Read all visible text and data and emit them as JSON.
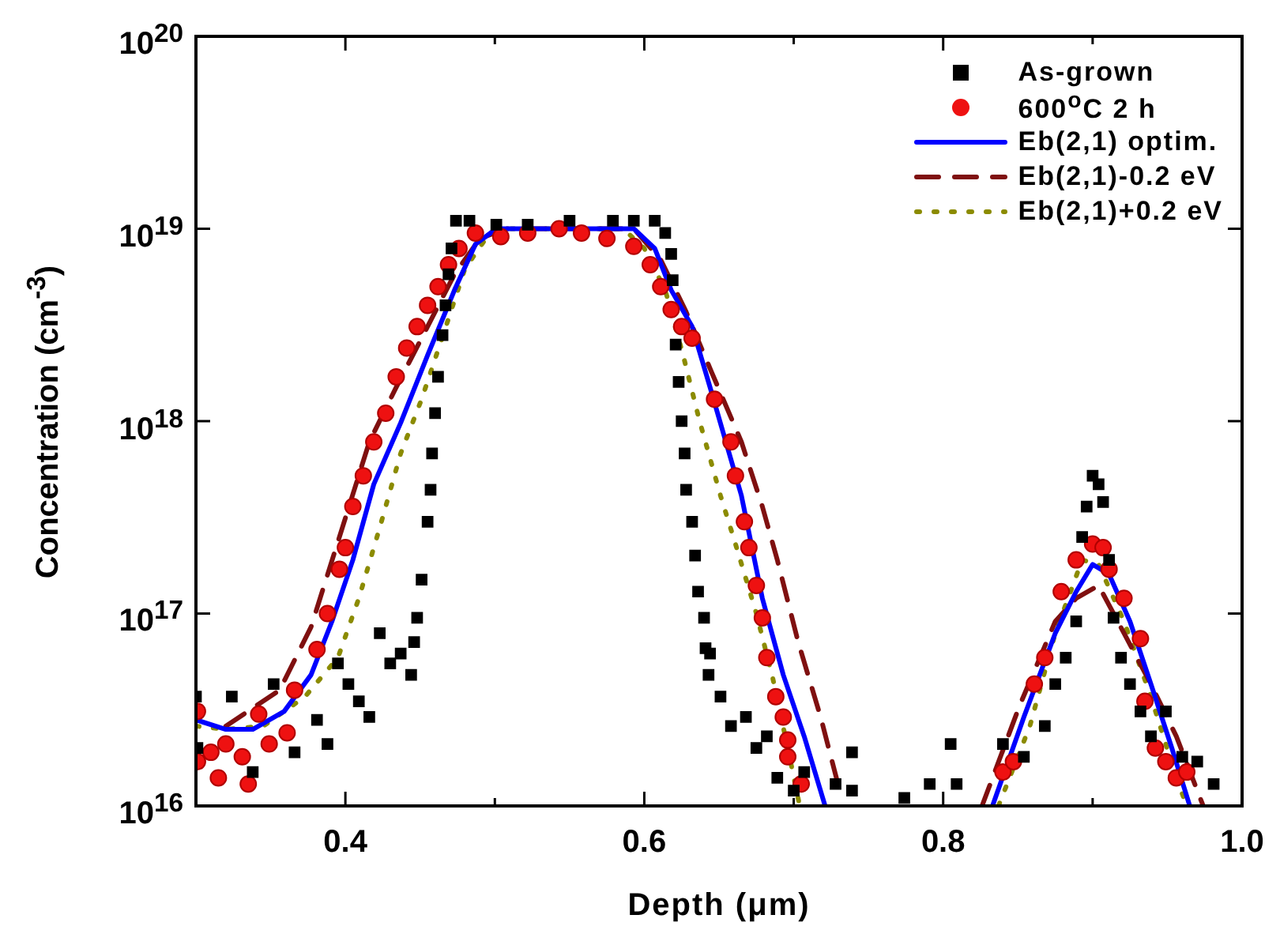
{
  "chart_data": {
    "type": "scatter",
    "xlabel": "Depth (μm)",
    "ylabel": "Concentration (cm$^{-3}$)",
    "log": "y",
    "grid": false,
    "legend": "top right",
    "xlim": [
      0.3,
      1.0
    ],
    "xticks": [
      {
        "value": 0.3,
        "label": null
      },
      0.4,
      {
        "value": 0.5,
        "label": null
      },
      0.6,
      {
        "value": 0.7,
        "label": null
      },
      0.8,
      {
        "value": 0.9,
        "label": null
      },
      {
        "value": 1.0,
        "label": "1.0"
      }
    ],
    "ylim": [
      1e+16,
      1e+20
    ],
    "yticks": [
      {
        "value": 1e+16,
        "label": "10$^{16}$"
      },
      {
        "value": 1e+17,
        "label": "10$^{17}$"
      },
      {
        "value": 1e+18,
        "label": "10$^{18}$"
      },
      {
        "value": 1e+19,
        "label": "10$^{19}$"
      },
      {
        "value": 1e+20,
        "label": "10$^{20}$"
      }
    ],
    "series": [
      {
        "name": "As-grown",
        "marker": "square",
        "color": "#000000",
        "x": [
          0.3,
          0.301,
          0.324,
          0.338,
          0.352,
          0.366,
          0.381,
          0.388,
          0.395,
          0.402,
          0.409,
          0.416,
          0.423,
          0.43,
          0.437,
          0.444,
          0.446,
          0.448,
          0.451,
          0.455,
          0.457,
          0.458,
          0.46,
          0.462,
          0.465,
          0.467,
          0.469,
          0.471,
          0.474,
          0.483,
          0.501,
          0.522,
          0.55,
          0.579,
          0.593,
          0.607,
          0.614,
          0.618,
          0.619,
          0.621,
          0.623,
          0.625,
          0.627,
          0.628,
          0.632,
          0.634,
          0.636,
          0.64,
          0.641,
          0.643,
          0.644,
          0.651,
          0.658,
          0.668,
          0.675,
          0.682,
          0.689,
          0.7,
          0.707,
          0.728,
          0.739,
          0.739,
          0.774,
          0.791,
          0.805,
          0.809,
          0.84,
          0.854,
          0.868,
          0.875,
          0.882,
          0.889,
          0.893,
          0.896,
          0.9,
          0.904,
          0.907,
          0.911,
          0.914,
          0.919,
          0.925,
          0.932,
          0.939,
          0.949,
          0.96,
          0.97,
          0.981
        ],
        "values": [
          3.7e+16,
          2e+16,
          3.7e+16,
          1.5e+16,
          4.3e+16,
          1.9e+16,
          2.8e+16,
          2.1e+16,
          5.5e+16,
          4.3e+16,
          3.5e+16,
          2.9e+16,
          7.9e+16,
          5.5e+16,
          6.2e+16,
          4.8e+16,
          7.1e+16,
          9.5e+16,
          1.5e+17,
          3e+17,
          4.4e+17,
          6.8e+17,
          1.1e+18,
          1.7e+18,
          2.8e+18,
          4e+18,
          5.8e+18,
          7.9e+18,
          1.1e+19,
          1.1e+19,
          1.05e+19,
          1.05e+19,
          1.1e+19,
          1.1e+19,
          1.1e+19,
          1.1e+19,
          9.5e+18,
          7.4e+18,
          5.4e+18,
          2.5e+18,
          1.6e+18,
          1e+18,
          6.8e+17,
          4.4e+17,
          3e+17,
          2e+17,
          1.3e+17,
          9.5e+16,
          6.6e+16,
          4.8e+16,
          6.2e+16,
          3.7e+16,
          2.6e+16,
          2.9e+16,
          2e+16,
          2.3e+16,
          1.4e+16,
          1.2e+16,
          1.5e+16,
          1.3e+16,
          1.9e+16,
          1.2e+16,
          1.1e+16,
          1.3e+16,
          2.1e+16,
          1.3e+16,
          2.1e+16,
          1.8e+16,
          2.6e+16,
          4.3e+16,
          5.9e+16,
          9.1e+16,
          2.5e+17,
          3.6e+17,
          5.2e+17,
          4.7e+17,
          3.8e+17,
          1.9e+17,
          9.5e+16,
          5.9e+16,
          4.3e+16,
          3.1e+16,
          2.3e+16,
          3.1e+16,
          1.8e+16,
          1.7e+16,
          1.3e+16
        ]
      },
      {
        "name": "600$^{o}$C 2 h",
        "marker": "circle",
        "color": "#ee1111",
        "x": [
          0.301,
          0.301,
          0.31,
          0.315,
          0.32,
          0.331,
          0.335,
          0.342,
          0.349,
          0.361,
          0.366,
          0.381,
          0.388,
          0.396,
          0.4,
          0.405,
          0.412,
          0.419,
          0.427,
          0.434,
          0.441,
          0.448,
          0.455,
          0.462,
          0.469,
          0.476,
          0.487,
          0.504,
          0.522,
          0.543,
          0.558,
          0.575,
          0.593,
          0.604,
          0.611,
          0.618,
          0.625,
          0.632,
          0.647,
          0.658,
          0.661,
          0.667,
          0.67,
          0.675,
          0.679,
          0.682,
          0.688,
          0.693,
          0.696,
          0.696,
          0.705,
          0.84,
          0.847,
          0.861,
          0.868,
          0.879,
          0.889,
          0.9,
          0.907,
          0.911,
          0.921,
          0.932,
          0.935,
          0.942,
          0.949,
          0.956,
          0.963
        ],
        "values": [
          3.1e+16,
          1.7e+16,
          1.9e+16,
          1.4e+16,
          2.1e+16,
          1.8e+16,
          1.3e+16,
          3e+16,
          2.1e+16,
          2.4e+16,
          4e+16,
          6.5e+16,
          1e+17,
          1.7e+17,
          2.2e+17,
          3.6e+17,
          5.2e+17,
          7.8e+17,
          1.1e+18,
          1.7e+18,
          2.4e+18,
          3.1e+18,
          4e+18,
          5e+18,
          6.5e+18,
          7.9e+18,
          9.5e+18,
          9.1e+18,
          9.5e+18,
          1e+19,
          9.5e+18,
          8.9e+18,
          8.1e+18,
          6.5e+18,
          5e+18,
          3.8e+18,
          3.1e+18,
          2.7e+18,
          1.3e+18,
          7.8e+17,
          5.2e+17,
          3e+17,
          2.2e+17,
          1.4e+17,
          9.5e+16,
          5.9e+16,
          3.7e+16,
          2.9e+16,
          2.2e+16,
          1.8e+16,
          1.3e+16,
          1.5e+16,
          1.7e+16,
          4.3e+16,
          5.9e+16,
          1.3e+17,
          1.9e+17,
          2.3e+17,
          2.2e+17,
          1.7e+17,
          1.2e+17,
          7.4e+16,
          3.5e+16,
          2e+16,
          1.7e+16,
          1.4e+16,
          1.5e+16
        ]
      },
      {
        "name": "Eb(2,1) optim.",
        "type": "line",
        "line_style": "solid",
        "color": "#0000ff",
        "x": [
          0.3,
          0.32,
          0.338,
          0.359,
          0.377,
          0.391,
          0.405,
          0.419,
          0.437,
          0.455,
          0.473,
          0.487,
          0.501,
          0.593,
          0.607,
          0.618,
          0.632,
          0.644,
          0.665,
          0.679,
          0.693,
          0.707,
          0.721,
          0.777,
          0.833,
          0.854,
          0.875,
          0.889,
          0.9,
          0.911,
          0.925,
          0.939,
          0.953,
          0.965
        ],
        "values": [
          2.8e+16,
          2.5e+16,
          2.5e+16,
          3.1e+16,
          4.8e+16,
          9.1e+16,
          1.9e+17,
          4.7e+17,
          9.8e+17,
          2.2e+18,
          4.8e+18,
          8.3e+18,
          1e+19,
          1e+19,
          7.9e+18,
          4.8e+18,
          3.1e+18,
          1.5e+18,
          4.1e+17,
          1.2e+17,
          4.8e+16,
          2.3e+16,
          1e+16,
          null,
          1e+16,
          2.9e+16,
          7.9e+16,
          1.3e+17,
          1.8e+17,
          1.6e+17,
          9.1e+16,
          4.3e+16,
          2e+16,
          1e+16
        ]
      },
      {
        "name": "Eb(2,1)-0.2 eV",
        "type": "line",
        "line_style": "dashed",
        "color": "#7f1010",
        "x": [
          0.32,
          0.356,
          0.377,
          0.398,
          0.416,
          0.434,
          0.451,
          0.473,
          0.49,
          0.508,
          0.593,
          0.611,
          0.628,
          0.645,
          0.665,
          0.679,
          0.689,
          0.703,
          0.718,
          0.732,
          0.78,
          0.826,
          0.851,
          0.875,
          0.889,
          0.904,
          0.921,
          0.939,
          0.956,
          0.974
        ],
        "values": [
          2.6e+16,
          4e+16,
          8.5e+16,
          2.8e+17,
          7.8e+17,
          1.5e+18,
          2.7e+18,
          5.8e+18,
          8.9e+18,
          1e+19,
          1e+19,
          6.9e+18,
          3.7e+18,
          1.8e+18,
          7.8e+17,
          3.6e+17,
          1.9e+17,
          7.1e+16,
          2.9e+16,
          1.1e+16,
          null,
          1e+16,
          3.3e+16,
          9.1e+16,
          1.2e+17,
          1.4e+17,
          7.9e+16,
          4.3e+16,
          2.3e+16,
          1e+16
        ]
      },
      {
        "name": "Eb(2,1)+0.2 eV",
        "type": "line",
        "line_style": "dotted",
        "color": "#8b8b00",
        "x": [
          0.3,
          0.32,
          0.345,
          0.373,
          0.395,
          0.409,
          0.423,
          0.437,
          0.451,
          0.466,
          0.48,
          0.494,
          0.508,
          0.586,
          0.6,
          0.614,
          0.626,
          0.637,
          0.651,
          0.661,
          0.675,
          0.686,
          0.696,
          0.704,
          0.77,
          0.837,
          0.858,
          0.875,
          0.893,
          0.904,
          0.921,
          0.939,
          0.956,
          0.963
        ],
        "values": [
          2.6e+16,
          2.5e+16,
          2.6e+16,
          3.7e+16,
          5.9e+16,
          1.2e+17,
          2.8e+17,
          6.8e+17,
          1.3e+18,
          2.9e+18,
          6.2e+18,
          8.9e+18,
          1e+19,
          1e+19,
          7.9e+18,
          4.8e+18,
          2.2e+18,
          1e+18,
          4.1e+17,
          2.3e+17,
          1e+17,
          4.6e+16,
          2e+16,
          1e+16,
          null,
          1e+16,
          2.6e+16,
          7.9e+16,
          1.9e+17,
          1.8e+17,
          9.1e+16,
          3.7e+16,
          1.4e+16,
          1e+16
        ]
      }
    ]
  }
}
